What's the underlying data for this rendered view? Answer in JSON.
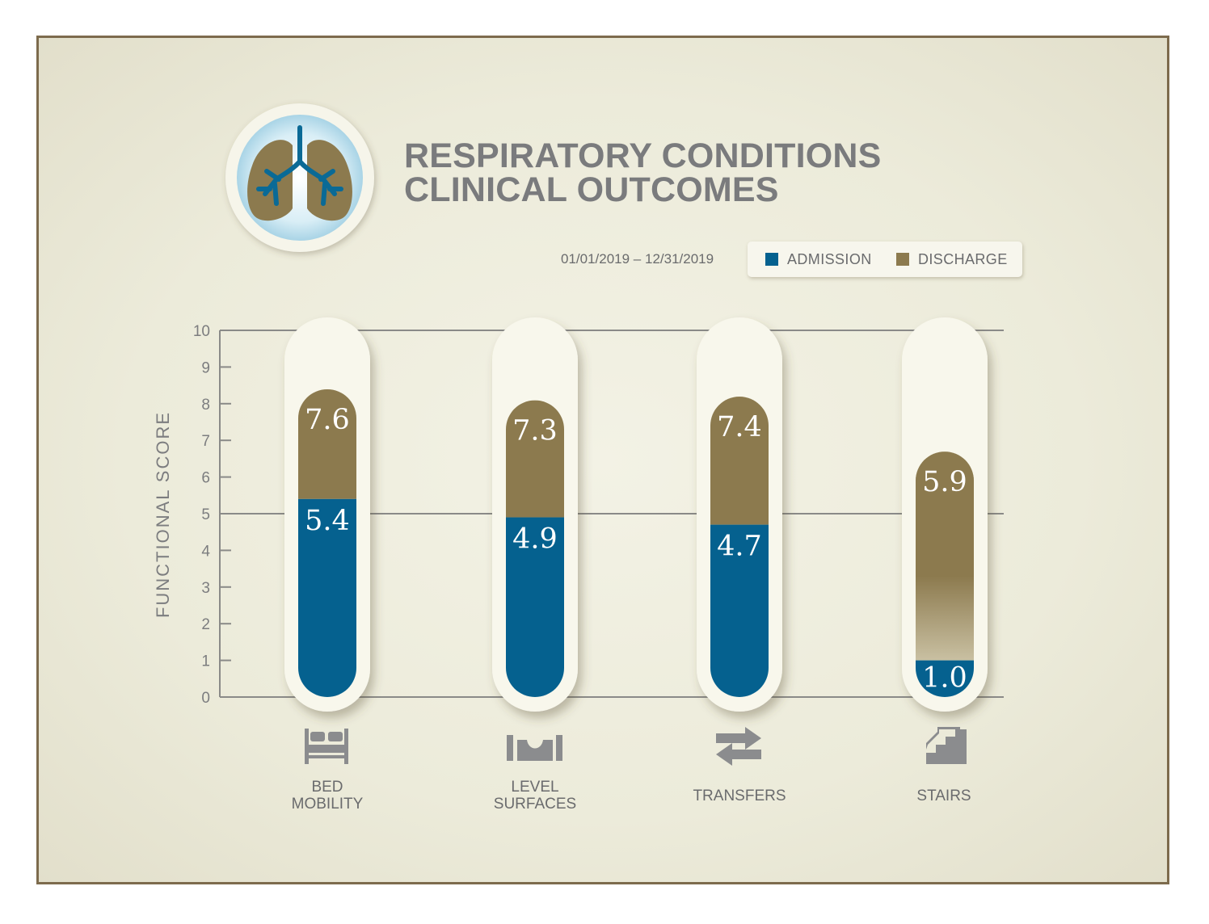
{
  "colors": {
    "admission": "#05618f",
    "discharge": "#8c7a4e",
    "axis": "#8a8a88",
    "icon": "#8b8c8e",
    "lung_fill": "#8c7a4e",
    "lung_airway": "#0a6a96"
  },
  "header": {
    "title_line1": "RESPIRATORY CONDITIONS",
    "title_line2": "CLINICAL OUTCOMES",
    "date_range": "01/01/2019 – 12/31/2019",
    "logo_icon": "lungs-icon"
  },
  "chart_data": {
    "type": "bar",
    "title": "RESPIRATORY CONDITIONS CLINICAL OUTCOMES",
    "ylabel": "FUNCTIONAL SCORE",
    "xlabel": "",
    "ylim": [
      0,
      10
    ],
    "yticks": [
      0,
      1,
      2,
      3,
      4,
      5,
      6,
      7,
      8,
      9,
      10
    ],
    "grid_lines": [
      5,
      10
    ],
    "legend_placement": "top-right",
    "categories": [
      {
        "lines": [
          "BED",
          "MOBILITY"
        ],
        "icon": "bed-icon"
      },
      {
        "lines": [
          "LEVEL",
          "SURFACES"
        ],
        "icon": "level-surface-icon"
      },
      {
        "lines": [
          "TRANSFERS"
        ],
        "icon": "transfer-arrows-icon"
      },
      {
        "lines": [
          "STAIRS"
        ],
        "icon": "stairs-icon"
      }
    ],
    "series": [
      {
        "name": "ADMISSION",
        "values": [
          5.4,
          4.9,
          4.7,
          1.0
        ],
        "labels": [
          "5.4",
          "4.9",
          "4.7",
          "1.0"
        ]
      },
      {
        "name": "DISCHARGE",
        "values": [
          7.6,
          7.3,
          7.4,
          5.9
        ],
        "labels": [
          "7.6",
          "7.3",
          "7.4",
          "5.9"
        ]
      }
    ]
  }
}
